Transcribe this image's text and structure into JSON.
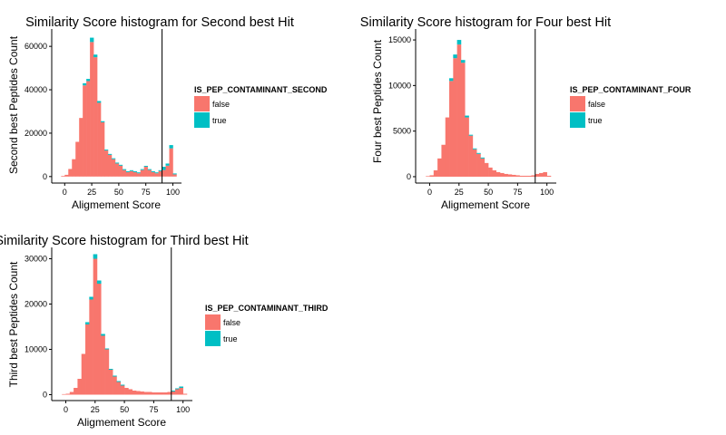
{
  "chart_data": [
    {
      "type": "bar",
      "title": "Similarity Score histogram for Second best Hit",
      "xlabel": "Aligmement Score",
      "ylabel": "Second best Peptides Count",
      "xlim": [
        -12,
        108
      ],
      "ylim": [
        -3000,
        68000
      ],
      "xticks": [
        0,
        25,
        50,
        75,
        100
      ],
      "yticks": [
        0,
        20000,
        40000,
        60000
      ],
      "ytick_labels": [
        "0",
        "20000",
        "40000",
        "60000"
      ],
      "bin_width": 3.33,
      "vline": 90,
      "legend": {
        "title": "IS_PEP_CONTAMINANT_SECOND",
        "placement": "right"
      },
      "x": [
        -1.67,
        1.67,
        5,
        8.33,
        11.67,
        15,
        18.33,
        21.67,
        25,
        28.33,
        31.67,
        35,
        38.33,
        41.67,
        45,
        48.33,
        51.67,
        55,
        58.33,
        61.67,
        65,
        68.33,
        71.67,
        75,
        78.33,
        81.67,
        85,
        88.33,
        91.67,
        95,
        98.33,
        101.67
      ],
      "series": [
        {
          "name": "false",
          "color": "#F8766D",
          "values": [
            300,
            800,
            3500,
            8000,
            16000,
            27000,
            42000,
            44000,
            62000,
            55000,
            34000,
            25000,
            12000,
            10000,
            8000,
            6000,
            5000,
            3000,
            2000,
            2500,
            2000,
            1500,
            3000,
            4500,
            3000,
            2000,
            1500,
            2500,
            3000,
            5000,
            13000,
            1000
          ]
        },
        {
          "name": "true",
          "color": "#00BFC4",
          "values": [
            0,
            0,
            0,
            0,
            0,
            0,
            1000,
            1000,
            2000,
            1200,
            800,
            500,
            300,
            200,
            200,
            100,
            100,
            100,
            50,
            50,
            50,
            50,
            50,
            50,
            50,
            50,
            50,
            100,
            1500,
            1000,
            1500,
            100
          ]
        }
      ]
    },
    {
      "type": "bar",
      "title": "Similarity Score histogram for Four best Hit",
      "xlabel": "Aligmement Score",
      "ylabel": "Four best Peptides Count",
      "xlim": [
        -12,
        108
      ],
      "ylim": [
        -700,
        16200
      ],
      "xticks": [
        0,
        25,
        50,
        75,
        100
      ],
      "yticks": [
        0,
        5000,
        10000,
        15000
      ],
      "ytick_labels": [
        "0",
        "5000",
        "10000",
        "15000"
      ],
      "bin_width": 3.33,
      "vline": 90,
      "legend": {
        "title": "IS_PEP_CONTAMINANT_FOUR",
        "placement": "right"
      },
      "x": [
        -1.67,
        1.67,
        5,
        8.33,
        11.67,
        15,
        18.33,
        21.67,
        25,
        28.33,
        31.67,
        35,
        38.33,
        41.67,
        45,
        48.33,
        51.67,
        55,
        58.33,
        61.67,
        65,
        68.33,
        71.67,
        75,
        78.33,
        81.67,
        85,
        88.33,
        91.67,
        95,
        98.33,
        101.67
      ],
      "series": [
        {
          "name": "false",
          "color": "#F8766D",
          "values": [
            50,
            150,
            700,
            2000,
            3500,
            6500,
            10500,
            13000,
            14500,
            12500,
            6500,
            4500,
            3000,
            2500,
            2000,
            1500,
            1000,
            700,
            500,
            400,
            300,
            250,
            200,
            150,
            100,
            100,
            100,
            150,
            300,
            400,
            500,
            100
          ]
        },
        {
          "name": "true",
          "color": "#00BFC4",
          "values": [
            0,
            0,
            0,
            0,
            0,
            0,
            300,
            400,
            500,
            300,
            200,
            100,
            50,
            50,
            50,
            0,
            0,
            0,
            0,
            0,
            0,
            0,
            0,
            0,
            0,
            0,
            0,
            0,
            0,
            0,
            0,
            0
          ]
        }
      ]
    },
    {
      "type": "bar",
      "title": "Similarity Score histogram for Third best Hit",
      "xlabel": "Aligmement Score",
      "ylabel": "Third best Peptides Count",
      "xlim": [
        -12,
        108
      ],
      "ylim": [
        -1300,
        32500
      ],
      "xticks": [
        0,
        25,
        50,
        75,
        100
      ],
      "yticks": [
        0,
        10000,
        20000,
        30000
      ],
      "ytick_labels": [
        "0",
        "10000",
        "20000",
        "30000"
      ],
      "bin_width": 3.33,
      "vline": 90,
      "legend": {
        "title": "IS_PEP_CONTAMINANT_THIRD",
        "placement": "right"
      },
      "x": [
        -1.67,
        1.67,
        5,
        8.33,
        11.67,
        15,
        18.33,
        21.67,
        25,
        28.33,
        31.67,
        35,
        38.33,
        41.67,
        45,
        48.33,
        51.67,
        55,
        58.33,
        61.67,
        65,
        68.33,
        71.67,
        75,
        78.33,
        81.67,
        85,
        88.33,
        91.67,
        95,
        98.33,
        101.67
      ],
      "series": [
        {
          "name": "false",
          "color": "#F8766D",
          "values": [
            100,
            200,
            600,
            1500,
            3500,
            9000,
            15500,
            21000,
            30000,
            24500,
            13000,
            10000,
            5500,
            4000,
            2800,
            2000,
            1500,
            1200,
            900,
            800,
            700,
            600,
            600,
            500,
            500,
            500,
            500,
            600,
            700,
            1200,
            1500,
            200
          ]
        },
        {
          "name": "true",
          "color": "#00BFC4",
          "values": [
            0,
            0,
            0,
            0,
            0,
            0,
            500,
            600,
            1000,
            700,
            400,
            200,
            100,
            100,
            50,
            50,
            0,
            0,
            0,
            0,
            0,
            0,
            0,
            0,
            0,
            0,
            0,
            0,
            100,
            200,
            300,
            0
          ]
        }
      ]
    }
  ]
}
